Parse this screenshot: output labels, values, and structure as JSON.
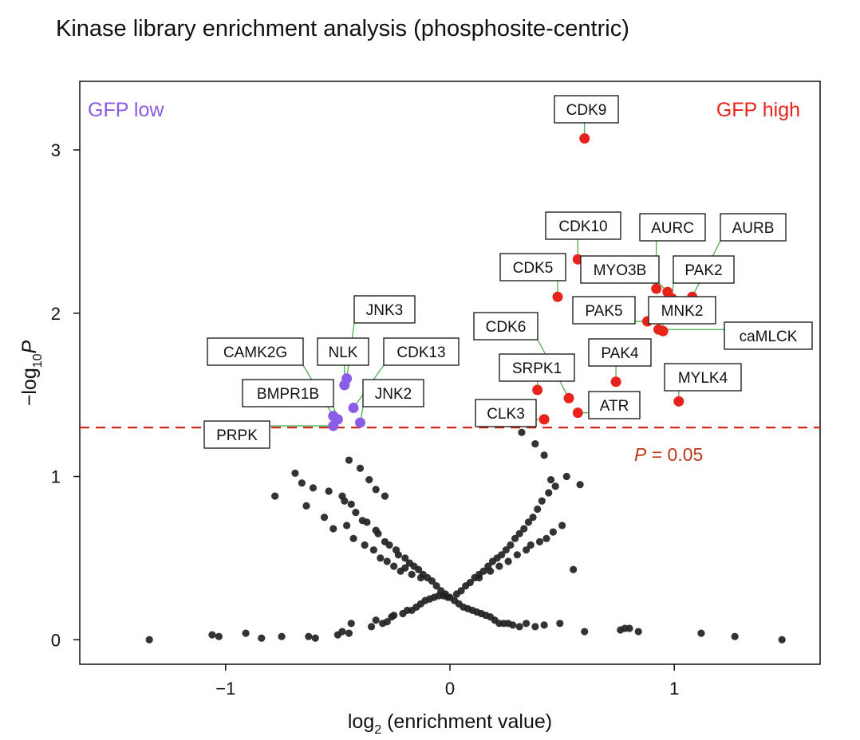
{
  "chart_data": {
    "type": "scatter",
    "title": "Kinase library enrichment analysis (phosphosite-centric)",
    "xlabel_main": "log",
    "xlabel_sub": "2",
    "xlabel_rest": " (enrichment value)",
    "ylabel_prefix": "−log",
    "ylabel_sub": "10",
    "ylabel_var": "P",
    "xlim": [
      -1.65,
      1.65
    ],
    "ylim": [
      -0.15,
      3.42
    ],
    "xticks": [
      -1,
      0,
      1
    ],
    "xtick_labels": [
      "−1",
      "0",
      "1"
    ],
    "yticks": [
      0,
      1,
      2,
      3
    ],
    "ytick_labels": [
      "0",
      "1",
      "2",
      "3"
    ],
    "threshold": 1.3,
    "threshold_label_var": "P",
    "threshold_label_rest": " = 0.05",
    "corner_low": "GFP low",
    "corner_high": "GFP high",
    "colors": {
      "low": "#8B5CE6",
      "high": "#E8231B",
      "ns": "#222222",
      "threshold": "#D42A1E",
      "leader": "#4CAF50",
      "threshold_text": "#C0391B"
    },
    "labeled_points": [
      {
        "name": "CDK9",
        "x": 0.6,
        "y": 3.07,
        "group": "high"
      },
      {
        "name": "CDK10",
        "x": 0.57,
        "y": 2.33,
        "group": "high"
      },
      {
        "name": "CDK5",
        "x": 0.48,
        "y": 2.1,
        "group": "high"
      },
      {
        "name": "AURC",
        "x": 0.92,
        "y": 2.15,
        "group": "high"
      },
      {
        "name": "AURB",
        "x": 1.08,
        "y": 2.1,
        "group": "high"
      },
      {
        "name": "MYO3B",
        "x": 0.97,
        "y": 2.13,
        "group": "high"
      },
      {
        "name": "PAK2",
        "x": 0.99,
        "y": 2.09,
        "group": "high"
      },
      {
        "name": "PAK5",
        "x": 0.88,
        "y": 1.95,
        "group": "high"
      },
      {
        "name": "MNK2",
        "x": 0.95,
        "y": 1.89,
        "group": "high"
      },
      {
        "name": "caMLCK",
        "x": 0.93,
        "y": 1.9,
        "group": "high"
      },
      {
        "name": "CDK6",
        "x": 0.53,
        "y": 1.48,
        "group": "high"
      },
      {
        "name": "PAK4",
        "x": 0.74,
        "y": 1.58,
        "group": "high"
      },
      {
        "name": "SRPK1",
        "x": 0.39,
        "y": 1.53,
        "group": "high"
      },
      {
        "name": "MYLK4",
        "x": 1.02,
        "y": 1.46,
        "group": "high"
      },
      {
        "name": "ATR",
        "x": 0.57,
        "y": 1.39,
        "group": "high"
      },
      {
        "name": "CLK3",
        "x": 0.42,
        "y": 1.35,
        "group": "high"
      },
      {
        "name": "JNK3",
        "x": -0.46,
        "y": 1.6,
        "group": "low"
      },
      {
        "name": "NLK",
        "x": -0.47,
        "y": 1.56,
        "group": "low"
      },
      {
        "name": "CDK13",
        "x": -0.43,
        "y": 1.42,
        "group": "low"
      },
      {
        "name": "CAMK2G",
        "x": -0.52,
        "y": 1.37,
        "group": "low"
      },
      {
        "name": "JNK2",
        "x": -0.4,
        "y": 1.33,
        "group": "low"
      },
      {
        "name": "BMPR1B",
        "x": -0.5,
        "y": 1.35,
        "group": "low"
      },
      {
        "name": "PRPK",
        "x": -0.52,
        "y": 1.31,
        "group": "low"
      }
    ],
    "other_points_x": [
      -1.34,
      -1.06,
      -1.03,
      -0.91,
      -0.84,
      -0.75,
      -0.63,
      -0.6,
      -0.5,
      -0.48,
      -0.45,
      -0.44,
      -0.35,
      -0.33,
      -0.3,
      -0.28,
      -0.26,
      -0.25,
      -0.21,
      -0.19,
      -0.17,
      -0.15,
      -0.13,
      -0.11,
      -0.09,
      -0.07,
      -0.05,
      -0.03,
      -0.01,
      0.02,
      0.04,
      0.06,
      0.08,
      0.1,
      0.12,
      0.14,
      0.16,
      0.18,
      0.2,
      0.22,
      0.24,
      0.26,
      0.28,
      0.31,
      0.34,
      0.38,
      0.42,
      0.49,
      0.6,
      0.76,
      0.78,
      0.8,
      0.84,
      1.12,
      1.27,
      1.48,
      -0.69,
      -0.66,
      -0.61,
      -0.54,
      -0.48,
      -0.47,
      -0.44,
      -0.42,
      -0.39,
      -0.37,
      -0.33,
      -0.32,
      -0.29,
      -0.27,
      -0.24,
      -0.23,
      -0.2,
      -0.18,
      -0.16,
      -0.14,
      -0.12,
      -0.1,
      -0.08,
      -0.06,
      -0.04,
      -0.02,
      0.0,
      0.03,
      0.05,
      0.07,
      0.09,
      0.11,
      0.13,
      0.15,
      0.17,
      0.19,
      0.21,
      0.23,
      0.25,
      0.27,
      0.29,
      0.31,
      0.33,
      0.35,
      0.37,
      0.39,
      0.41,
      0.44,
      0.47,
      0.52,
      -0.78,
      -0.64,
      -0.56,
      -0.52,
      -0.46,
      -0.43,
      -0.38,
      -0.34,
      -0.31,
      -0.28,
      -0.25,
      -0.22,
      -0.2,
      -0.17,
      -0.13,
      0.13,
      0.18,
      0.22,
      0.26,
      0.3,
      0.34,
      0.36,
      0.4,
      0.43,
      0.46,
      0.5,
      0.55,
      0.58,
      0.32,
      0.38,
      0.42,
      0.45,
      -0.45,
      -0.4,
      -0.36,
      -0.33,
      -0.29
    ],
    "other_points_y": [
      0.0,
      0.03,
      0.02,
      0.04,
      0.01,
      0.02,
      0.02,
      0.01,
      0.03,
      0.05,
      0.04,
      0.1,
      0.08,
      0.12,
      0.1,
      0.11,
      0.14,
      0.15,
      0.16,
      0.18,
      0.18,
      0.2,
      0.22,
      0.24,
      0.25,
      0.26,
      0.27,
      0.27,
      0.26,
      0.24,
      0.22,
      0.2,
      0.19,
      0.18,
      0.17,
      0.16,
      0.15,
      0.14,
      0.12,
      0.1,
      0.1,
      0.1,
      0.09,
      0.08,
      0.1,
      0.08,
      0.09,
      0.1,
      0.05,
      0.06,
      0.07,
      0.07,
      0.05,
      0.04,
      0.02,
      0.0,
      1.02,
      0.96,
      0.93,
      0.91,
      0.88,
      0.85,
      0.83,
      0.78,
      0.73,
      0.72,
      0.67,
      0.65,
      0.6,
      0.58,
      0.55,
      0.52,
      0.5,
      0.47,
      0.45,
      0.43,
      0.4,
      0.38,
      0.36,
      0.33,
      0.3,
      0.28,
      0.26,
      0.28,
      0.3,
      0.33,
      0.35,
      0.38,
      0.4,
      0.42,
      0.45,
      0.48,
      0.5,
      0.52,
      0.55,
      0.58,
      0.62,
      0.65,
      0.68,
      0.72,
      0.75,
      0.8,
      0.85,
      0.9,
      0.94,
      1.0,
      0.88,
      0.82,
      0.75,
      0.68,
      0.7,
      0.62,
      0.58,
      0.55,
      0.5,
      0.48,
      0.45,
      0.42,
      0.44,
      0.4,
      0.38,
      0.38,
      0.42,
      0.45,
      0.48,
      0.52,
      0.55,
      0.58,
      0.6,
      0.62,
      0.66,
      0.7,
      0.43,
      0.95,
      1.27,
      1.2,
      1.13,
      0.98,
      1.1,
      1.05,
      0.98,
      0.92,
      0.88
    ]
  }
}
